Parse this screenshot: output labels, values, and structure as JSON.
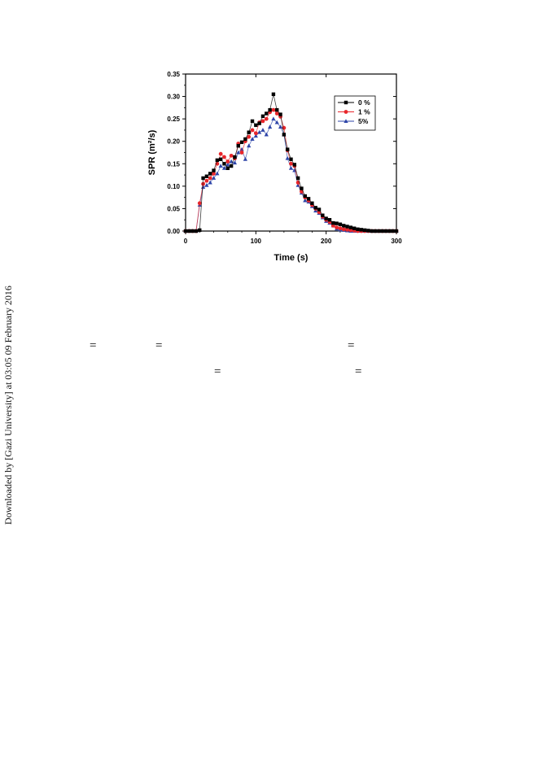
{
  "side_note": "Downloaded by [Gazi University] at 03:05 09 February 2016",
  "equals_marks": [
    "=",
    "=",
    "=",
    "=",
    "="
  ],
  "chart_data": {
    "type": "line",
    "title": "",
    "xlabel": "Time (s)",
    "ylabel": "SPR (m²/s)",
    "xlim": [
      0,
      300
    ],
    "ylim": [
      0,
      0.35
    ],
    "xticks": [
      0,
      100,
      200,
      300
    ],
    "yticks": [
      0.0,
      0.05,
      0.1,
      0.15,
      0.2,
      0.25,
      0.3,
      0.35
    ],
    "legend_position": "top-right",
    "grid": false,
    "series": [
      {
        "name": "0 %",
        "color": "#000000",
        "marker": "square",
        "x": [
          0,
          5,
          10,
          15,
          20,
          25,
          30,
          35,
          40,
          45,
          50,
          55,
          60,
          65,
          70,
          75,
          80,
          85,
          90,
          95,
          100,
          105,
          110,
          115,
          120,
          125,
          130,
          135,
          140,
          145,
          150,
          155,
          160,
          165,
          170,
          175,
          180,
          185,
          190,
          195,
          200,
          205,
          210,
          215,
          220,
          225,
          230,
          235,
          240,
          245,
          250,
          255,
          260,
          265,
          270,
          275,
          280,
          285,
          290,
          295,
          300
        ],
        "y": [
          0,
          0,
          0,
          0,
          0.002,
          0.118,
          0.122,
          0.128,
          0.135,
          0.158,
          0.16,
          0.15,
          0.14,
          0.145,
          0.165,
          0.19,
          0.198,
          0.205,
          0.22,
          0.245,
          0.236,
          0.24,
          0.256,
          0.262,
          0.27,
          0.305,
          0.27,
          0.26,
          0.215,
          0.182,
          0.16,
          0.148,
          0.118,
          0.095,
          0.078,
          0.072,
          0.062,
          0.052,
          0.048,
          0.035,
          0.028,
          0.025,
          0.018,
          0.017,
          0.015,
          0.012,
          0.01,
          0.008,
          0.006,
          0.004,
          0.003,
          0.002,
          0.001,
          0,
          0,
          0,
          0,
          0,
          0,
          0,
          0
        ]
      },
      {
        "name": "1 %",
        "color": "#e8262b",
        "marker": "circle",
        "x": [
          0,
          5,
          10,
          15,
          20,
          25,
          30,
          35,
          40,
          45,
          50,
          55,
          60,
          65,
          70,
          75,
          80,
          85,
          90,
          95,
          100,
          105,
          110,
          115,
          120,
          125,
          130,
          135,
          140,
          145,
          150,
          155,
          160,
          165,
          170,
          175,
          180,
          185,
          190,
          195,
          200,
          205,
          210,
          215,
          220,
          225,
          230,
          235,
          240,
          245,
          250,
          255,
          260,
          265,
          270,
          275,
          280,
          285,
          290,
          295,
          300
        ],
        "y": [
          0,
          0,
          0,
          0,
          0.062,
          0.105,
          0.112,
          0.118,
          0.128,
          0.15,
          0.172,
          0.165,
          0.155,
          0.168,
          0.162,
          0.195,
          0.175,
          0.2,
          0.21,
          0.225,
          0.218,
          0.242,
          0.245,
          0.25,
          0.265,
          0.27,
          0.262,
          0.255,
          0.23,
          0.18,
          0.15,
          0.145,
          0.108,
          0.088,
          0.075,
          0.068,
          0.058,
          0.05,
          0.042,
          0.032,
          0.025,
          0.02,
          0.012,
          0.008,
          0.006,
          0.004,
          0.003,
          0.002,
          0.001,
          0,
          0,
          0,
          0,
          0,
          0,
          0,
          0,
          0,
          0,
          0,
          0
        ]
      },
      {
        "name": "5%",
        "color": "#2e45a8",
        "marker": "triangle",
        "x": [
          0,
          5,
          10,
          15,
          20,
          25,
          30,
          35,
          40,
          45,
          50,
          55,
          60,
          65,
          70,
          75,
          80,
          85,
          90,
          95,
          100,
          105,
          110,
          115,
          120,
          125,
          130,
          135,
          140,
          145,
          150,
          155,
          160,
          165,
          170,
          175,
          180,
          185,
          190,
          195,
          200,
          205,
          210,
          215,
          220,
          225,
          230,
          235,
          240,
          245,
          250,
          255,
          260,
          265,
          270,
          275,
          280,
          285,
          290,
          295,
          300
        ],
        "y": [
          0,
          0,
          0,
          0,
          0.058,
          0.098,
          0.102,
          0.108,
          0.118,
          0.128,
          0.145,
          0.14,
          0.148,
          0.155,
          0.152,
          0.175,
          0.182,
          0.16,
          0.19,
          0.205,
          0.212,
          0.22,
          0.225,
          0.215,
          0.232,
          0.25,
          0.242,
          0.232,
          0.215,
          0.162,
          0.14,
          0.135,
          0.102,
          0.085,
          0.068,
          0.065,
          0.055,
          0.045,
          0.04,
          0.03,
          0.022,
          0.018,
          0.012,
          0.005,
          0.003,
          0.002,
          0.001,
          0,
          0,
          0,
          0,
          0,
          0,
          0,
          0,
          0,
          0,
          0,
          0,
          0,
          0
        ]
      }
    ]
  }
}
